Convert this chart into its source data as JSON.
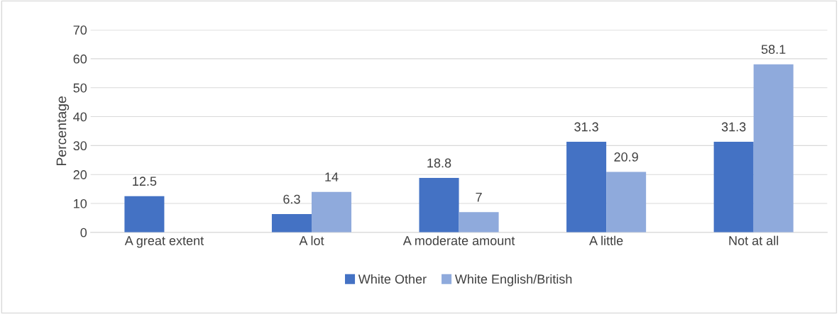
{
  "chart_data": {
    "type": "bar",
    "ylabel": "Percentage",
    "categories": [
      "A great extent",
      "A lot",
      "A moderate amount",
      "A little",
      "Not at all"
    ],
    "series": [
      {
        "name": "White Other",
        "color": "#4472c4",
        "values": [
          12.5,
          6.3,
          18.8,
          31.3,
          31.3
        ]
      },
      {
        "name": "White English/British",
        "color": "#8faadc",
        "values": [
          null,
          14,
          7,
          20.9,
          58.1
        ]
      }
    ],
    "ylim": [
      0,
      70
    ],
    "yticks": [
      0,
      10,
      20,
      30,
      40,
      50,
      60,
      70
    ],
    "grid": "y",
    "legend": "bottom",
    "data_labels": true
  }
}
